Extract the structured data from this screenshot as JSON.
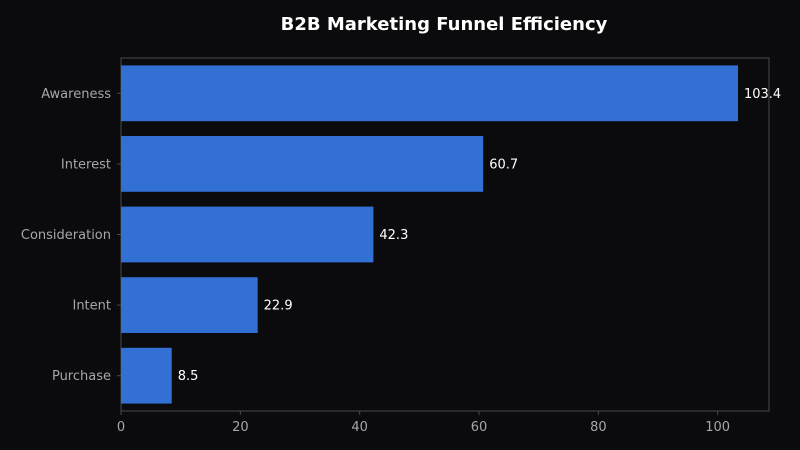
{
  "chart_data": {
    "type": "bar",
    "orientation": "horizontal",
    "title": "B2B Marketing Funnel Efficiency",
    "xlabel": "",
    "ylabel": "",
    "categories": [
      "Awareness",
      "Interest",
      "Consideration",
      "Intent",
      "Purchase"
    ],
    "values": [
      103.4,
      60.7,
      42.3,
      22.9,
      8.5
    ],
    "value_labels": [
      "103.4",
      "60.7",
      "42.3",
      "22.9",
      "8.5"
    ],
    "xlim": [
      0,
      108.6
    ],
    "xticks": [
      0,
      20,
      40,
      60,
      80,
      100
    ],
    "xtick_labels": [
      "0",
      "20",
      "40",
      "60",
      "80",
      "100"
    ],
    "grid": false,
    "legend": "none"
  },
  "colors": {
    "background": "#0b0b0d",
    "plot_background": "#0b0b0d",
    "bar": "#3370d4",
    "axis_spine": "#4a4a50",
    "tick_label": "#a6a6ad",
    "title": "#ffffff",
    "value_label": "#ffffff"
  }
}
